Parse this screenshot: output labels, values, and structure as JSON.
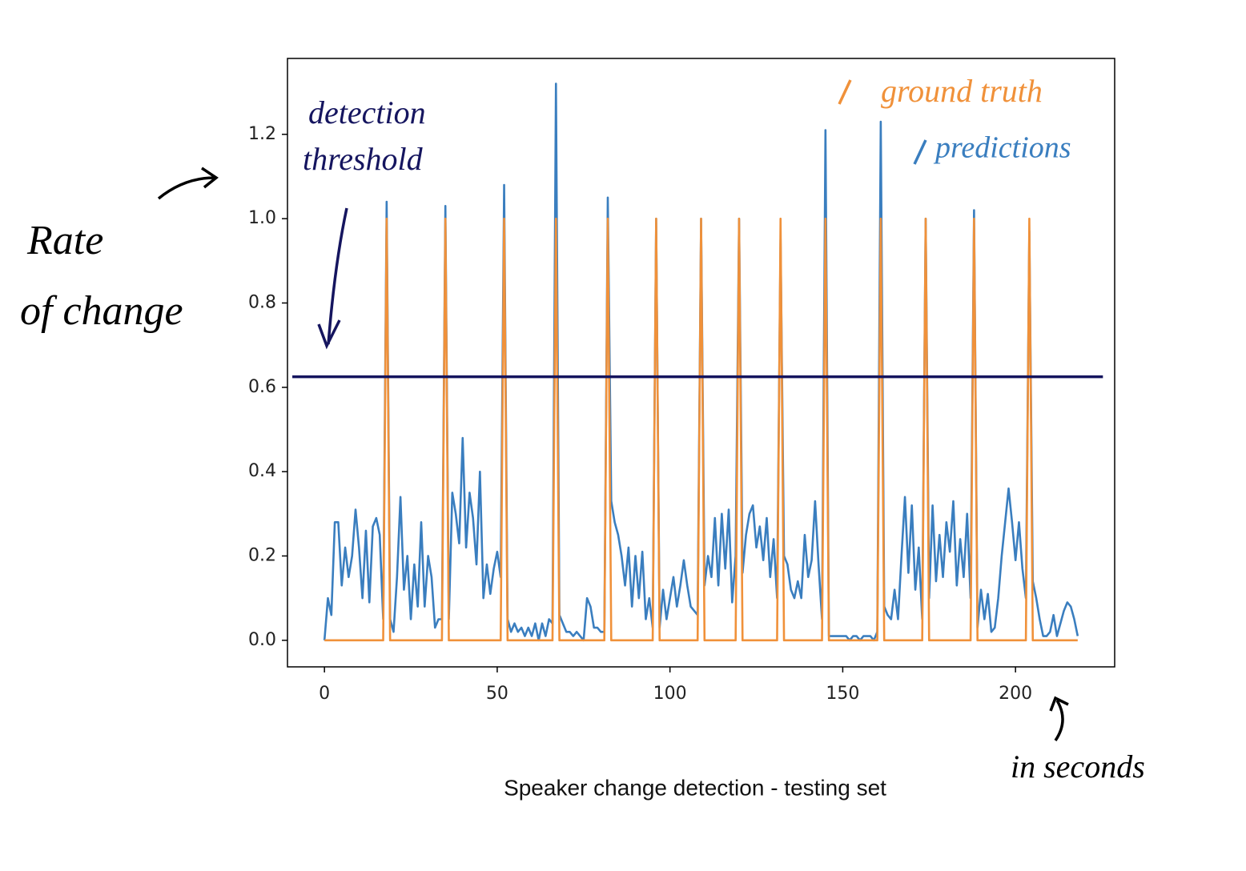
{
  "chart_data": {
    "type": "line",
    "title": "Speaker change detection - testing set",
    "ylabel": [
      "Rate",
      "of change"
    ],
    "xunit": "in seconds",
    "threshold": {
      "label": [
        "detection",
        "threshold"
      ],
      "value": 0.625,
      "xrange": [
        -9.3,
        225.3
      ],
      "color": "#15155f"
    },
    "xlim": [
      -10.7,
      228.7
    ],
    "ylim": [
      -0.063,
      1.38
    ],
    "xticks": [
      0,
      50,
      100,
      150,
      200
    ],
    "yticks": [
      {
        "value": 0,
        "label": "0.0"
      },
      0.2,
      0.4,
      0.6,
      0.8,
      {
        "value": 1,
        "label": "1.0"
      },
      1.2
    ],
    "series": [
      {
        "name": "predictions",
        "color": "#3a7ebf",
        "x": [
          0,
          1,
          2,
          3,
          4,
          5,
          6,
          7,
          8,
          9,
          10,
          11,
          12,
          13,
          14,
          15,
          16,
          17,
          18,
          19,
          20,
          21,
          22,
          23,
          24,
          25,
          26,
          27,
          28,
          29,
          30,
          31,
          32,
          33,
          34,
          35,
          36,
          37,
          38,
          39,
          40,
          41,
          42,
          43,
          44,
          45,
          46,
          47,
          48,
          49,
          50,
          51,
          52,
          53,
          54,
          55,
          56,
          57,
          58,
          59,
          60,
          61,
          62,
          63,
          64,
          65,
          66,
          67,
          68,
          69,
          70,
          71,
          72,
          73,
          74,
          75,
          76,
          77,
          78,
          79,
          80,
          81,
          82,
          83,
          84,
          85,
          86,
          87,
          88,
          89,
          90,
          91,
          92,
          93,
          94,
          95,
          96,
          97,
          98,
          99,
          100,
          101,
          102,
          103,
          104,
          105,
          106,
          107,
          108,
          109,
          110,
          111,
          112,
          113,
          114,
          115,
          116,
          117,
          118,
          119,
          120,
          121,
          122,
          123,
          124,
          125,
          126,
          127,
          128,
          129,
          130,
          131,
          132,
          133,
          134,
          135,
          136,
          137,
          138,
          139,
          140,
          141,
          142,
          143,
          144,
          145,
          146,
          147,
          148,
          149,
          150,
          151,
          152,
          153,
          154,
          155,
          156,
          157,
          158,
          159,
          160,
          161,
          162,
          163,
          164,
          165,
          166,
          167,
          168,
          169,
          170,
          171,
          172,
          173,
          174,
          175,
          176,
          177,
          178,
          179,
          180,
          181,
          182,
          183,
          184,
          185,
          186,
          187,
          188,
          189,
          190,
          191,
          192,
          193,
          194,
          195,
          196,
          197,
          198,
          199,
          200,
          201,
          202,
          203,
          204,
          205,
          206,
          207,
          208,
          209,
          210,
          211,
          212,
          213,
          214,
          215,
          216,
          217,
          218
        ],
        "values": [
          0,
          0.1,
          0.06,
          0.28,
          0.28,
          0.13,
          0.22,
          0.15,
          0.2,
          0.31,
          0.22,
          0.1,
          0.26,
          0.09,
          0.27,
          0.29,
          0.25,
          0.05,
          1.04,
          0.05,
          0.02,
          0.15,
          0.34,
          0.12,
          0.2,
          0.05,
          0.18,
          0.08,
          0.28,
          0.08,
          0.2,
          0.15,
          0.03,
          0.05,
          0.05,
          1.03,
          0.05,
          0.35,
          0.3,
          0.23,
          0.48,
          0.22,
          0.35,
          0.29,
          0.18,
          0.4,
          0.1,
          0.18,
          0.11,
          0.17,
          0.21,
          0.15,
          1.08,
          0.05,
          0.02,
          0.04,
          0.02,
          0.03,
          0.01,
          0.03,
          0.01,
          0.04,
          0,
          0.04,
          0.01,
          0.05,
          0.04,
          1.32,
          0.06,
          0.04,
          0.02,
          0.02,
          0.01,
          0.02,
          0.01,
          0,
          0.1,
          0.08,
          0.03,
          0.03,
          0.02,
          0.02,
          1.05,
          0.33,
          0.28,
          0.25,
          0.2,
          0.13,
          0.22,
          0.08,
          0.2,
          0.1,
          0.21,
          0.05,
          0.1,
          0.03,
          1,
          0.03,
          0.12,
          0.05,
          0.1,
          0.15,
          0.08,
          0.13,
          0.19,
          0.13,
          0.08,
          0.07,
          0.06,
          1,
          0.13,
          0.2,
          0.15,
          0.29,
          0.13,
          0.3,
          0.17,
          0.31,
          0.09,
          0.2,
          1,
          0.16,
          0.25,
          0.3,
          0.32,
          0.22,
          0.27,
          0.19,
          0.29,
          0.15,
          0.24,
          0.1,
          0.95,
          0.2,
          0.18,
          0.12,
          0.1,
          0.14,
          0.1,
          0.25,
          0.15,
          0.19,
          0.33,
          0.18,
          0.05,
          1.21,
          0.01,
          0.01,
          0.01,
          0.01,
          0.01,
          0.01,
          0,
          0.01,
          0.01,
          0,
          0.01,
          0.01,
          0.01,
          0,
          0.02,
          1.23,
          0.08,
          0.06,
          0.05,
          0.12,
          0.05,
          0.2,
          0.34,
          0.16,
          0.32,
          0.12,
          0.22,
          0.05,
          1,
          0.1,
          0.32,
          0.14,
          0.25,
          0.15,
          0.28,
          0.21,
          0.33,
          0.13,
          0.24,
          0.15,
          0.3,
          0.1,
          1.02,
          0.03,
          0.12,
          0.05,
          0.11,
          0.02,
          0.03,
          0.1,
          0.2,
          0.28,
          0.36,
          0.28,
          0.19,
          0.28,
          0.17,
          0.1,
          0.97,
          0.14,
          0.1,
          0.05,
          0.01,
          0.01,
          0.02,
          0.06,
          0.01,
          0.04,
          0.07,
          0.09,
          0.08,
          0.05,
          0.01
        ]
      },
      {
        "name": "ground truth",
        "color": "#f0913a",
        "x": [
          0,
          17,
          18,
          19,
          34,
          35,
          36,
          51,
          52,
          53,
          66,
          67,
          68,
          81,
          82,
          83,
          95,
          96,
          97,
          108,
          109,
          110,
          119,
          120,
          121,
          131,
          132,
          133,
          144,
          145,
          146,
          160,
          161,
          162,
          173,
          174,
          175,
          187,
          188,
          189,
          203,
          204,
          205,
          218
        ],
        "values": [
          0,
          0,
          1,
          0,
          0,
          1,
          0,
          0,
          1,
          0,
          0,
          1,
          0,
          0,
          1,
          0,
          0,
          1,
          0,
          0,
          1,
          0,
          0,
          1,
          0,
          0,
          1,
          0,
          0,
          1,
          0,
          0,
          1,
          0,
          0,
          1,
          0,
          0,
          1,
          0,
          0,
          1,
          0,
          0
        ]
      }
    ]
  }
}
